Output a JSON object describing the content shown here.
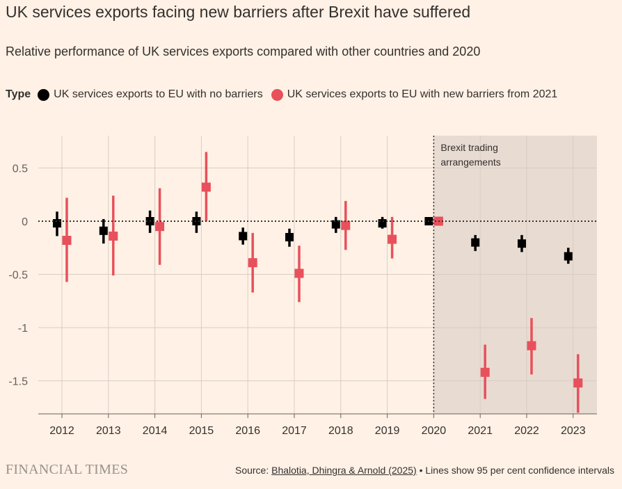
{
  "chart_data": {
    "type": "scatter",
    "title": "UK services exports facing new barriers after Brexit have suffered",
    "subtitle": "Relative performance of UK services exports compared with other countries and 2020",
    "legend_title": "Type",
    "categories": [
      "2012",
      "2013",
      "2014",
      "2015",
      "2016",
      "2017",
      "2018",
      "2019",
      "2020",
      "2021",
      "2022",
      "2023"
    ],
    "ylim": [
      -1.8,
      0.8
    ],
    "yticks": [
      0.5,
      0,
      -0.5,
      -1,
      -1.5
    ],
    "ytick_labels": [
      "0.5",
      "0",
      "-0.5",
      "-1",
      "-1.5"
    ],
    "series": [
      {
        "name": "UK services exports to EU with no barriers",
        "color": "#000000",
        "values": [
          -0.02,
          -0.09,
          0.0,
          0.0,
          -0.14,
          -0.15,
          -0.03,
          -0.02,
          0.0,
          -0.2,
          -0.21,
          -0.33
        ],
        "lower": [
          -0.14,
          -0.21,
          -0.11,
          -0.11,
          -0.22,
          -0.24,
          -0.11,
          -0.07,
          0.0,
          -0.28,
          -0.29,
          -0.4
        ],
        "upper": [
          0.09,
          0.02,
          0.1,
          0.09,
          -0.06,
          -0.07,
          0.04,
          0.04,
          0.0,
          -0.13,
          -0.13,
          -0.25
        ]
      },
      {
        "name": "UK services exports to EU with new barriers from 2021",
        "color": "#e8505b",
        "values": [
          -0.18,
          -0.14,
          -0.05,
          0.32,
          -0.39,
          -0.49,
          -0.04,
          -0.17,
          0.0,
          -1.42,
          -1.17,
          -1.52
        ],
        "lower": [
          -0.57,
          -0.51,
          -0.41,
          0.0,
          -0.67,
          -0.76,
          -0.27,
          -0.35,
          0.0,
          -1.67,
          -1.44,
          -1.8
        ],
        "upper": [
          0.22,
          0.24,
          0.31,
          0.65,
          -0.11,
          -0.23,
          0.19,
          0.04,
          0.0,
          -1.16,
          -0.91,
          -1.25
        ]
      }
    ],
    "annotation": "Brexit trading arrangements",
    "annotation_lines": [
      "Brexit trading",
      "arrangements"
    ],
    "shaded_from": "2020"
  },
  "footer": {
    "logo": "FINANCIAL TIMES",
    "source_prefix": "Source: ",
    "source_link": "Bhalotia, Dhingra & Arnold (2025)",
    "source_suffix": " • Lines show 95 per cent confidence intervals"
  }
}
